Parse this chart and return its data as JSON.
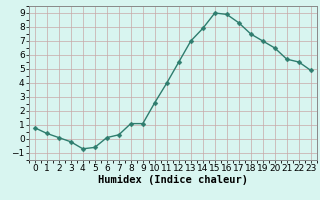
{
  "x": [
    0,
    1,
    2,
    3,
    4,
    5,
    6,
    7,
    8,
    9,
    10,
    11,
    12,
    13,
    14,
    15,
    16,
    17,
    18,
    19,
    20,
    21,
    22,
    23
  ],
  "y": [
    0.8,
    0.4,
    0.1,
    -0.2,
    -0.7,
    -0.6,
    0.1,
    0.3,
    1.1,
    1.1,
    2.6,
    4.0,
    5.5,
    7.0,
    7.9,
    9.0,
    8.9,
    8.3,
    7.5,
    7.0,
    6.5,
    5.7,
    5.5,
    4.9
  ],
  "line_color": "#2e7d6e",
  "marker": "D",
  "marker_size": 2.5,
  "line_width": 1.0,
  "bg_color": "#d8f5f0",
  "grid_color_major": "#c8a8a8",
  "grid_color_minor": "#c8d8d0",
  "xlabel": "Humidex (Indice chaleur)",
  "xlim": [
    -0.5,
    23.5
  ],
  "ylim": [
    -1.5,
    9.5
  ],
  "yticks": [
    -1,
    0,
    1,
    2,
    3,
    4,
    5,
    6,
    7,
    8,
    9
  ],
  "xticks": [
    0,
    1,
    2,
    3,
    4,
    5,
    6,
    7,
    8,
    9,
    10,
    11,
    12,
    13,
    14,
    15,
    16,
    17,
    18,
    19,
    20,
    21,
    22,
    23
  ],
  "tick_label_size": 6.5,
  "xlabel_size": 7.5,
  "spine_color": "#888888"
}
